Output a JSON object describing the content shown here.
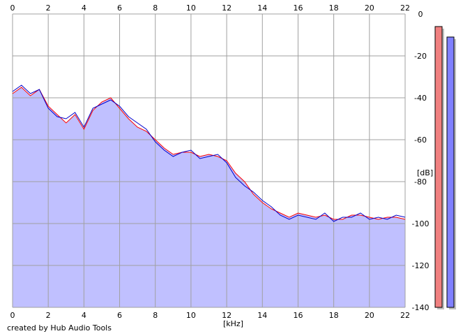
{
  "app": {
    "credit": "created by Hub Audio Tools",
    "x_unit": "[kHz]",
    "y_unit": "[dB]"
  },
  "colors": {
    "background": "#ffffff",
    "plot_background": "#ffffff",
    "fill": "#c0c0ff",
    "left_channel": "#ff0000",
    "right_channel": "#0000cc",
    "grid": "#a0a0a0",
    "meter_left": "#f08080",
    "meter_right": "#8080ff"
  },
  "chart_data": {
    "type": "line",
    "title": "",
    "xlabel": "[kHz]",
    "ylabel": "[dB]",
    "xlim": [
      0,
      22
    ],
    "ylim": [
      -140,
      0
    ],
    "x_ticks": [
      0,
      2,
      4,
      6,
      8,
      10,
      12,
      14,
      16,
      18,
      20,
      22
    ],
    "y_ticks": [
      0,
      -20,
      -40,
      -60,
      -80,
      -100,
      -120,
      -140
    ],
    "grid": true,
    "x_ticks_top": true,
    "y_ticks_right": true,
    "series": [
      {
        "color": "#ff0000",
        "fill": "#c0c0ff",
        "x": [
          0,
          0.5,
          1,
          1.5,
          2,
          2.5,
          3,
          3.5,
          4,
          4.5,
          5,
          5.5,
          6,
          6.5,
          7,
          7.5,
          8,
          8.5,
          9,
          9.5,
          10,
          10.5,
          11,
          11.5,
          12,
          12.5,
          13,
          13.5,
          14,
          14.5,
          15,
          15.5,
          16,
          16.5,
          17,
          17.5,
          18,
          18.5,
          19,
          19.5,
          20,
          20.5,
          21,
          21.5,
          22
        ],
        "y": [
          -38,
          -35,
          -39,
          -36,
          -44,
          -48,
          -52,
          -48,
          -55,
          -46,
          -42,
          -40,
          -45,
          -50,
          -54,
          -56,
          -60,
          -64,
          -67,
          -66,
          -66,
          -68,
          -67,
          -68,
          -70,
          -76,
          -80,
          -86,
          -90,
          -93,
          -95,
          -97,
          -95,
          -96,
          -97,
          -96,
          -98,
          -98,
          -96,
          -96,
          -97,
          -98,
          -97,
          -97,
          -98
        ]
      },
      {
        "color": "#0000cc",
        "x": [
          0,
          0.5,
          1,
          1.5,
          2,
          2.5,
          3,
          3.5,
          4,
          4.5,
          5,
          5.5,
          6,
          6.5,
          7,
          7.5,
          8,
          8.5,
          9,
          9.5,
          10,
          10.5,
          11,
          11.5,
          12,
          12.5,
          13,
          13.5,
          14,
          14.5,
          15,
          15.5,
          16,
          16.5,
          17,
          17.5,
          18,
          18.5,
          19,
          19.5,
          20,
          20.5,
          21,
          21.5,
          22
        ],
        "y": [
          -37,
          -34,
          -38,
          -36,
          -45,
          -49,
          -50,
          -47,
          -54,
          -45,
          -43,
          -41,
          -44,
          -49,
          -52,
          -55,
          -61,
          -65,
          -68,
          -66,
          -65,
          -69,
          -68,
          -67,
          -71,
          -78,
          -82,
          -85,
          -89,
          -92,
          -96,
          -98,
          -96,
          -97,
          -98,
          -95,
          -99,
          -97,
          -97,
          -95,
          -98,
          -97,
          -98,
          -96,
          -97
        ]
      }
    ]
  },
  "meters": [
    {
      "channel": "left",
      "top_db": -6,
      "color": "#f08080"
    },
    {
      "channel": "right",
      "top_db": -11,
      "color": "#8080ff"
    }
  ]
}
